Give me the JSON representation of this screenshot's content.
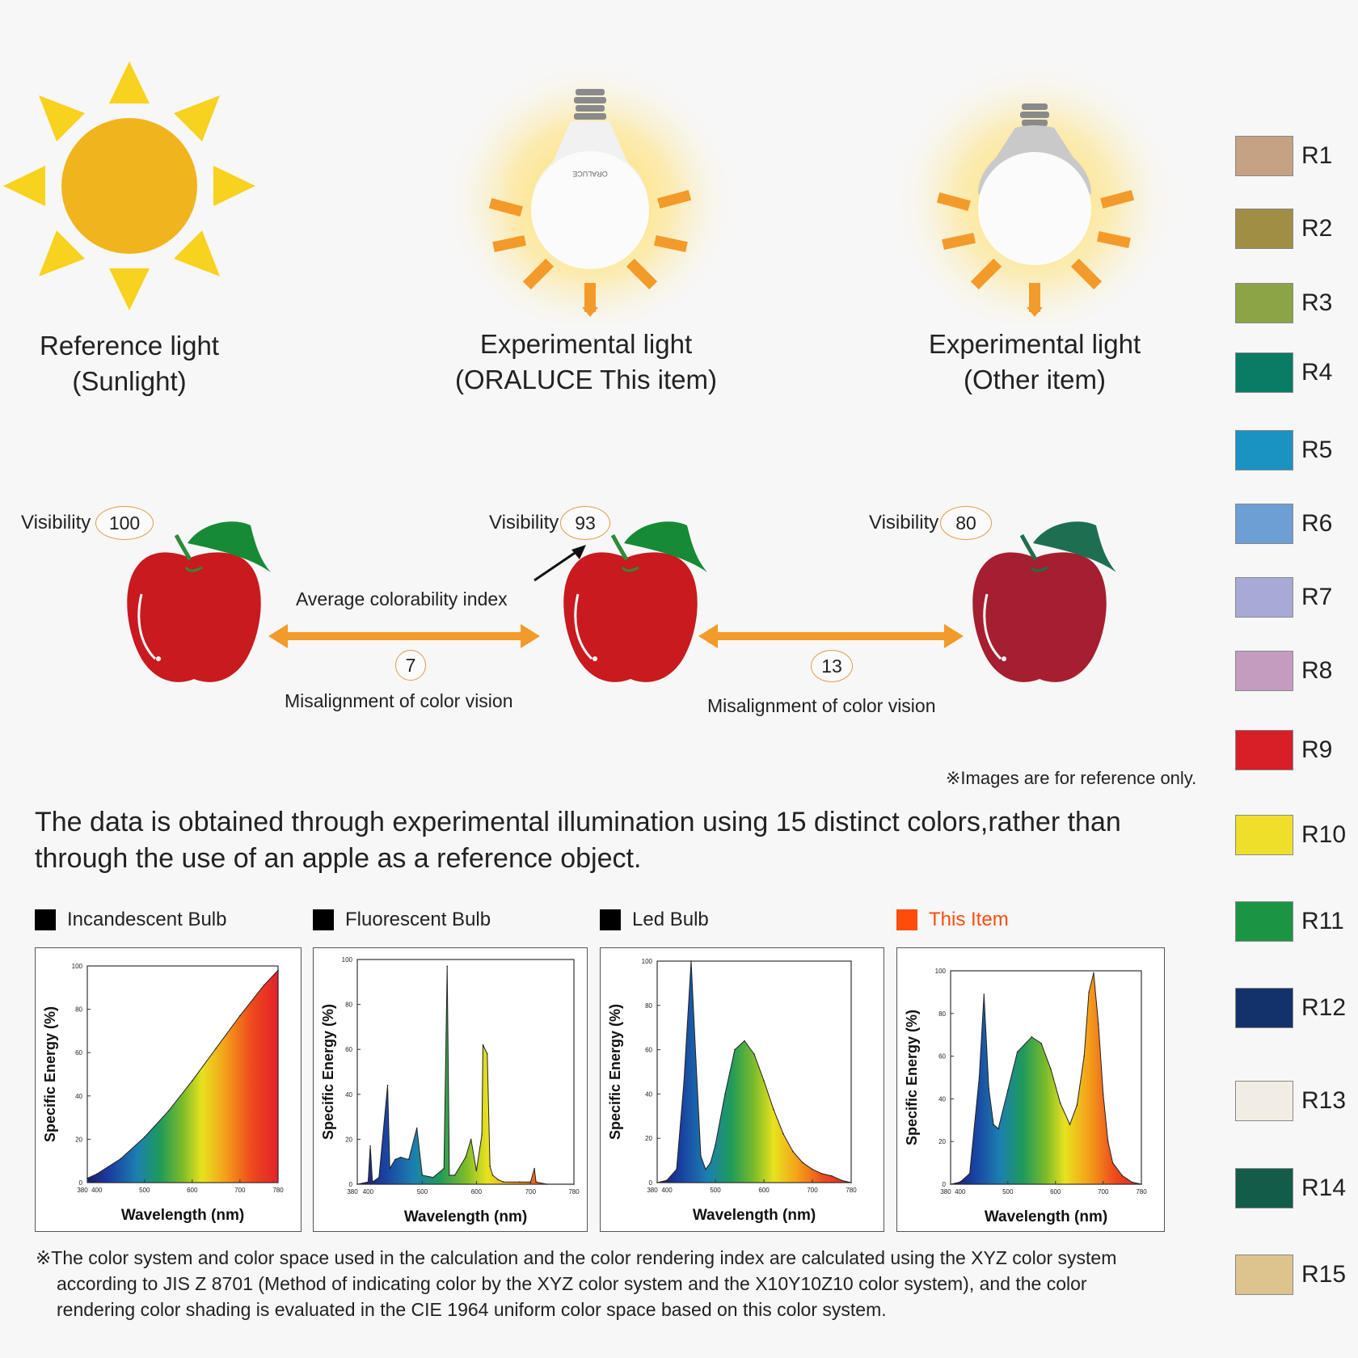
{
  "lights": [
    {
      "line1": "Reference light",
      "line2": "(Sunlight)"
    },
    {
      "line1": "Experimental light",
      "line2": "(ORALUCE This item)"
    },
    {
      "line1": "Experimental light",
      "line2": "(Other item)"
    }
  ],
  "bulb_brand": "ORALUCE",
  "visibility": {
    "label": "Visibility",
    "values": [
      "100",
      "93",
      "80"
    ]
  },
  "comparisons": {
    "average_label": "Average colorability index",
    "misalignment_label": "Misalignment of color vision",
    "values": [
      "7",
      "13"
    ]
  },
  "reference_note": "※Images are for reference only.",
  "statement": "The data is obtained through experimental illumination using 15 distinct colors,rather than through the use of an apple as a reference object.",
  "legend": [
    {
      "label": "Incandescent Bulb",
      "color": "#000000"
    },
    {
      "label": "Fluorescent Bulb",
      "color": "#000000"
    },
    {
      "label": "Led Bulb",
      "color": "#000000"
    },
    {
      "label": "This Item",
      "color": "#ff4c0a"
    }
  ],
  "chart_common": {
    "ylabel": "Specific Energy (%)",
    "xlabel": "Wavelength (nm)",
    "yticks": [
      "0",
      "20",
      "40",
      "60",
      "80",
      "100"
    ],
    "xticks": [
      "380",
      "400",
      "500",
      "600",
      "700",
      "780"
    ]
  },
  "chart_data": [
    {
      "type": "area",
      "title": "Incandescent Bulb",
      "xlabel": "Wavelength (nm)",
      "ylabel": "Specific Energy (%)",
      "xlim": [
        380,
        780
      ],
      "ylim": [
        0,
        100
      ],
      "x": [
        380,
        400,
        450,
        500,
        550,
        600,
        650,
        700,
        750,
        780
      ],
      "values": [
        2,
        4,
        11,
        21,
        33,
        47,
        62,
        77,
        91,
        98
      ]
    },
    {
      "type": "area",
      "title": "Fluorescent Bulb",
      "xlabel": "Wavelength (nm)",
      "ylabel": "Specific Energy (%)",
      "xlim": [
        380,
        780
      ],
      "ylim": [
        0,
        100
      ],
      "x": [
        380,
        400,
        404,
        408,
        420,
        436,
        440,
        450,
        460,
        475,
        490,
        500,
        520,
        540,
        546,
        550,
        560,
        580,
        590,
        600,
        610,
        612,
        620,
        625,
        630,
        640,
        650,
        680,
        700,
        707,
        710,
        730,
        780
      ],
      "values": [
        0,
        1,
        17,
        1,
        3,
        44,
        7,
        11,
        12,
        11,
        25,
        4,
        3,
        7,
        97,
        4,
        4,
        12,
        20,
        6,
        22,
        62,
        58,
        8,
        4,
        2,
        1,
        1,
        1,
        7,
        1,
        0,
        0
      ]
    },
    {
      "type": "area",
      "title": "Led Bulb",
      "xlabel": "Wavelength (nm)",
      "ylabel": "Specific Energy (%)",
      "xlim": [
        380,
        780
      ],
      "ylim": [
        0,
        100
      ],
      "x": [
        380,
        400,
        420,
        435,
        450,
        460,
        470,
        480,
        490,
        500,
        520,
        540,
        560,
        580,
        600,
        620,
        640,
        660,
        680,
        700,
        720,
        740,
        760,
        780
      ],
      "values": [
        0,
        1,
        6,
        45,
        100,
        55,
        12,
        6,
        9,
        17,
        40,
        60,
        64,
        58,
        46,
        33,
        22,
        14,
        9,
        6,
        4,
        3,
        1,
        0
      ]
    },
    {
      "type": "area",
      "title": "This Item",
      "xlabel": "Wavelength (nm)",
      "ylabel": "Specific Energy (%)",
      "xlim": [
        380,
        780
      ],
      "ylim": [
        0,
        100
      ],
      "x": [
        380,
        400,
        420,
        440,
        450,
        460,
        470,
        480,
        500,
        520,
        550,
        570,
        590,
        610,
        630,
        645,
        660,
        670,
        680,
        690,
        700,
        710,
        720,
        740,
        760,
        780
      ],
      "values": [
        0,
        1,
        5,
        50,
        89,
        45,
        28,
        26,
        44,
        62,
        69,
        66,
        54,
        38,
        28,
        37,
        60,
        90,
        99,
        75,
        42,
        20,
        10,
        4,
        1,
        0
      ]
    }
  ],
  "footnote": {
    "line1": "※The color system and color space used in the calculation and the color rendering index are calculated using the XYZ color system",
    "line2": "according to JIS Z 8701 (Method of indicating color by the XYZ color system and the X10Y10Z10 color system), and the color",
    "line3": "rendering color shading is evaluated in the CIE 1964 uniform color space based on this color system."
  },
  "swatches": [
    {
      "label": "R1",
      "color": "#c6a284"
    },
    {
      "label": "R2",
      "color": "#a08e44"
    },
    {
      "label": "R3",
      "color": "#8aa446"
    },
    {
      "label": "R4",
      "color": "#0a7c66"
    },
    {
      "label": "R5",
      "color": "#1a92c2"
    },
    {
      "label": "R6",
      "color": "#6e9fd4"
    },
    {
      "label": "R7",
      "color": "#a9a9d6"
    },
    {
      "label": "R8",
      "color": "#c49cc0"
    },
    {
      "label": "R9",
      "color": "#d81e26"
    },
    {
      "label": "R10",
      "color": "#f0df2a"
    },
    {
      "label": "R11",
      "color": "#1b9444"
    },
    {
      "label": "R12",
      "color": "#13326b"
    },
    {
      "label": "R13",
      "color": "#f2ede4"
    },
    {
      "label": "R14",
      "color": "#135c4a"
    },
    {
      "label": "R15",
      "color": "#ddc48f"
    }
  ]
}
